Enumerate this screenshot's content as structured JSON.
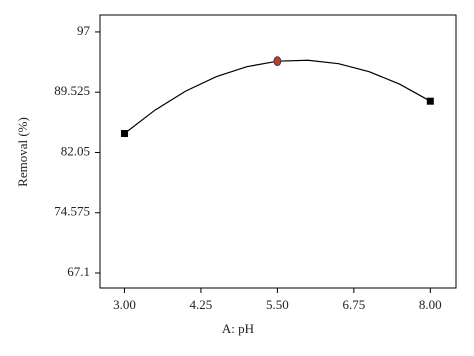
{
  "chart_data": {
    "type": "line",
    "x_label": "A: pH",
    "y_label": "Removal (%)",
    "xlim": [
      2.6,
      8.42
    ],
    "ylim": [
      65.24,
      99.1
    ],
    "xticks": [
      {
        "value": 3,
        "label": "3.00"
      },
      {
        "value": 4.25,
        "label": "4.25"
      },
      {
        "value": 5.5,
        "label": "5.50"
      },
      {
        "value": 6.75,
        "label": "6.75"
      },
      {
        "value": 8,
        "label": "8.00"
      }
    ],
    "yticks": [
      97,
      89.525,
      82.05,
      74.575,
      67.1
    ],
    "series": [
      {
        "mode": "line",
        "color": "#000000",
        "x": [
          3,
          3.5,
          4,
          4.5,
          5,
          5.5,
          6,
          6.5,
          7,
          7.5,
          8
        ],
        "values": [
          84.4,
          87.31,
          89.66,
          91.45,
          92.69,
          93.37,
          93.49,
          93.06,
          92.07,
          90.52,
          88.41
        ]
      },
      {
        "mode": "marker",
        "marker": "square",
        "color": "#000000",
        "x": [
          3,
          8
        ],
        "values": [
          84.4,
          88.41
        ]
      },
      {
        "mode": "marker",
        "marker": "circle",
        "color": "#c0392b",
        "x": [
          5.5
        ],
        "values": [
          93.37
        ]
      }
    ]
  }
}
